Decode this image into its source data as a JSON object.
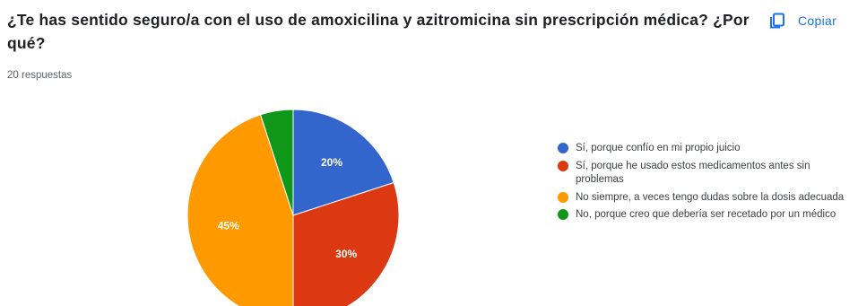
{
  "question": {
    "title": "¿Te has sentido seguro/a con el uso de amoxicilina y azitromicina sin prescripción médica? ¿Por qué?",
    "responses": "20 respuestas"
  },
  "copy": {
    "label": "Copiar",
    "icon": "copy-icon"
  },
  "chart_data": {
    "type": "pie",
    "title": "",
    "slices": [
      {
        "label": "Sí, porque confío en mi propio juicio",
        "value": 20,
        "display": "20%",
        "color": "#3366cc"
      },
      {
        "label": "Sí, porque he usado estos medicamentos antes sin problemas",
        "value": 30,
        "display": "30%",
        "color": "#dc3912"
      },
      {
        "label": "No siempre, a veces tengo dudas sobre la dosis adecuada",
        "value": 45,
        "display": "45%",
        "color": "#ff9900"
      },
      {
        "label": "No, porque creo que debería ser recetado por un médico",
        "value": 5,
        "display": "",
        "color": "#109618"
      }
    ],
    "legend_position": "right"
  }
}
